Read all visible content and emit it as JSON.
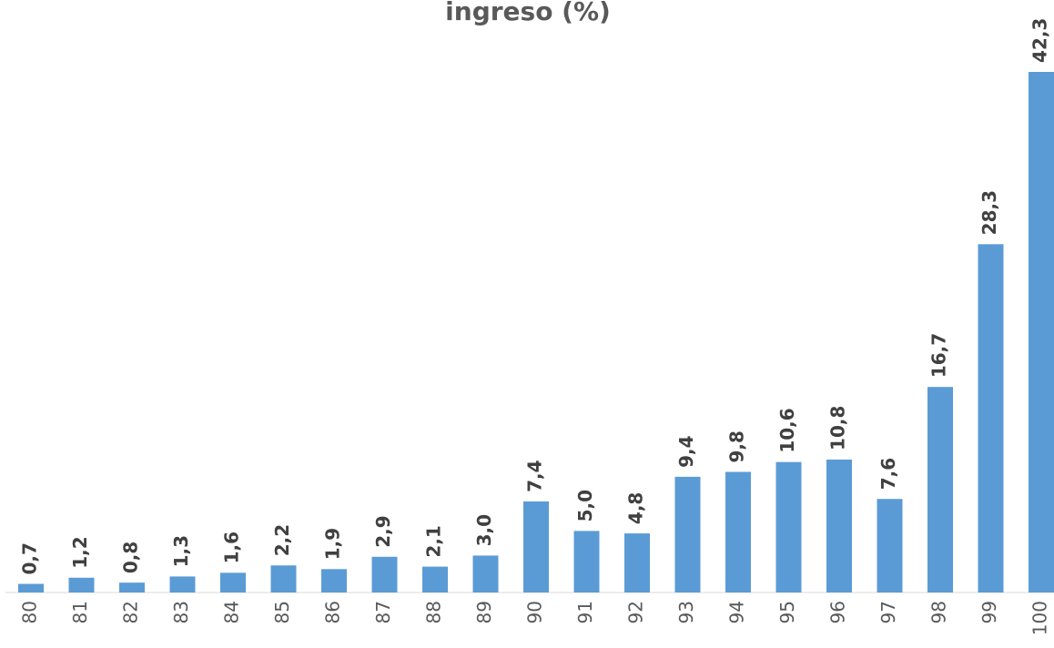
{
  "chart_data": {
    "type": "bar",
    "title": "ingreso (%)",
    "categories": [
      "80",
      "81",
      "82",
      "83",
      "84",
      "85",
      "86",
      "87",
      "88",
      "89",
      "90",
      "91",
      "92",
      "93",
      "94",
      "95",
      "96",
      "97",
      "98",
      "99",
      "100"
    ],
    "values": [
      0.7,
      1.2,
      0.8,
      1.3,
      1.6,
      2.2,
      1.9,
      2.9,
      2.1,
      3.0,
      7.4,
      5.0,
      4.8,
      9.4,
      9.8,
      10.6,
      10.8,
      7.6,
      16.7,
      28.3,
      42.3
    ],
    "value_labels": [
      "0,7",
      "1,2",
      "0,8",
      "1,3",
      "1,6",
      "2,2",
      "1,9",
      "2,9",
      "2,1",
      "3,0",
      "7,4",
      "5,0",
      "4,8",
      "9,4",
      "9,8",
      "10,6",
      "10,8",
      "7,6",
      "16,7",
      "28,3",
      "42,3"
    ],
    "color": "#5b9bd5"
  }
}
